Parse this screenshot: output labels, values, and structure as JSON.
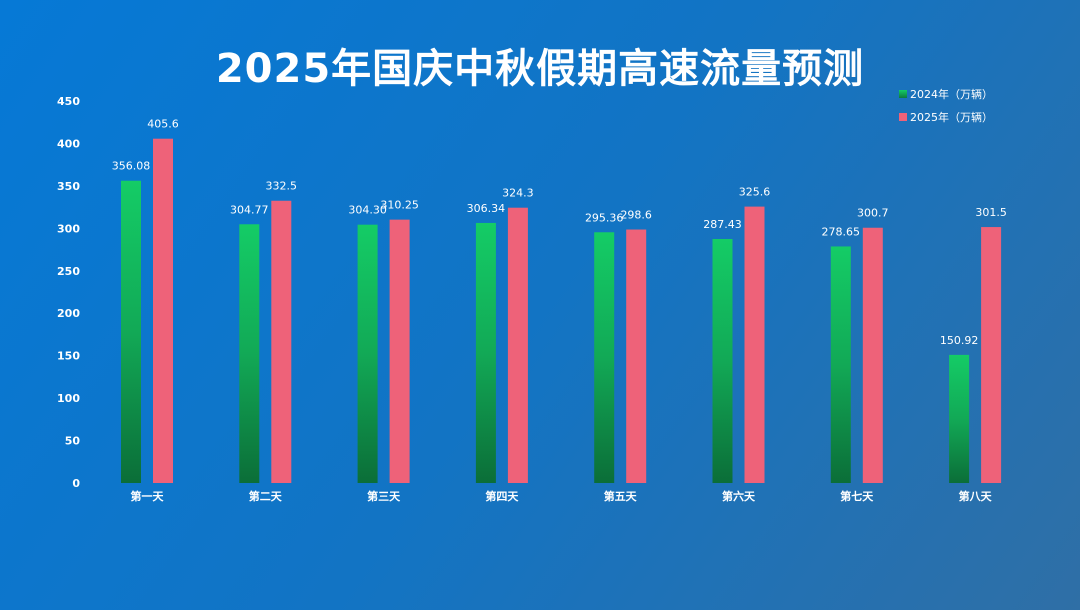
{
  "chart_data": {
    "type": "bar",
    "title": "2025年国庆中秋假期高速流量预测",
    "categories": [
      "第一天",
      "第二天",
      "第三天",
      "第四天",
      "第五天",
      "第六天",
      "第七天",
      "第八天"
    ],
    "series": [
      {
        "name": "2024年（万辆）",
        "values": [
          356.08,
          304.77,
          304.3,
          306.34,
          295.36,
          287.43,
          278.65,
          150.92
        ],
        "labels": [
          "356.08",
          "304.77",
          "304.30",
          "306.34",
          "295.36",
          "287.43",
          "278.65",
          "150.92"
        ],
        "color": "#14cc66"
      },
      {
        "name": "2025年（万辆）",
        "values": [
          405.6,
          332.5,
          310.25,
          324.3,
          298.6,
          325.6,
          300.7,
          301.5
        ],
        "labels": [
          "405.6",
          "332.5",
          "310.25",
          "324.3",
          "298.6",
          "325.6",
          "300.7",
          "301.5"
        ],
        "color": "#ee6279"
      }
    ],
    "ylim": [
      0,
      450
    ],
    "yticks": [
      "0",
      "50",
      "100",
      "150",
      "200",
      "250",
      "300",
      "350",
      "400",
      "450"
    ],
    "grid": false,
    "legend": "top-right"
  }
}
